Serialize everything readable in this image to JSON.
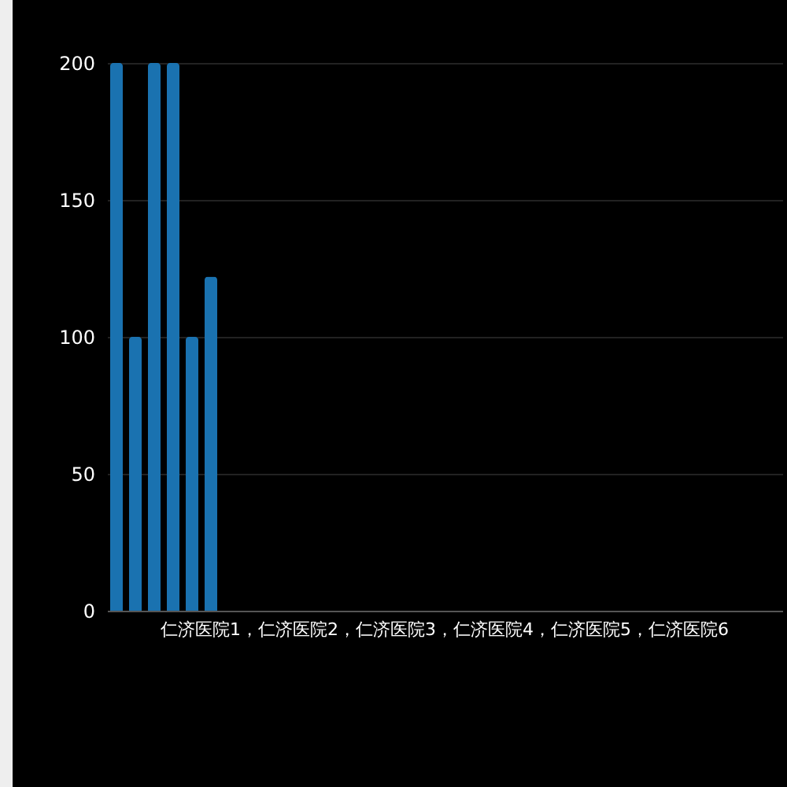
{
  "chart_data": {
    "type": "bar",
    "categories": [
      "仁济医院1，仁济医院2，仁济医院3，仁济医院4，仁济医院5，仁济医院6"
    ],
    "series": [
      {
        "color": "#1a72b0",
        "values": [
          200
        ]
      },
      {
        "color": "#1a72b0",
        "values": [
          100
        ]
      },
      {
        "color": "#1a72b0",
        "values": [
          200
        ]
      },
      {
        "color": "#1a72b0",
        "values": [
          200
        ]
      },
      {
        "color": "#1a72b0",
        "values": [
          100
        ]
      },
      {
        "color": "#1a72b0",
        "values": [
          122
        ]
      }
    ],
    "ylim": [
      0,
      200
    ],
    "yticks": [
      0,
      50,
      100,
      150,
      200
    ],
    "grid": "y",
    "legend": false
  }
}
